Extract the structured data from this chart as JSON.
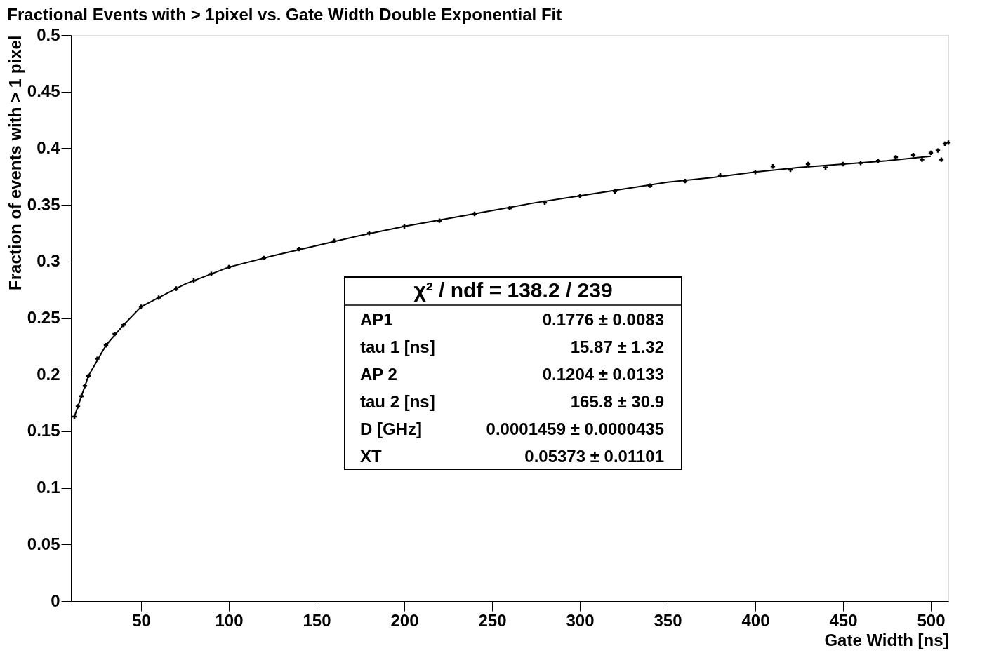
{
  "chart_data": {
    "type": "scatter",
    "title": "Fractional Events with > 1pixel vs. Gate Width Double Exponential Fit",
    "xlabel": "Gate Width [ns]",
    "ylabel": "Fraction of events with > 1 pixel",
    "xlim": [
      10,
      510
    ],
    "ylim": [
      0,
      0.5
    ],
    "xticks": [
      50,
      100,
      150,
      200,
      250,
      300,
      350,
      400,
      450,
      500
    ],
    "yticks": [
      0,
      0.05,
      0.1,
      0.15,
      0.2,
      0.25,
      0.3,
      0.35,
      0.4,
      0.45,
      0.5
    ],
    "grid": false,
    "series": [
      {
        "color": "#000000",
        "marker": "cross",
        "x": [
          12,
          14,
          16,
          18,
          20,
          25,
          30,
          35,
          40,
          50,
          60,
          70,
          80,
          90,
          100,
          120,
          140,
          160,
          180,
          200,
          220,
          240,
          260,
          280,
          300,
          320,
          340,
          360,
          380,
          400,
          410,
          420,
          430,
          440,
          450,
          460,
          470,
          480,
          490,
          495,
          500,
          504,
          506,
          508,
          510
        ],
        "values": [
          0.163,
          0.172,
          0.181,
          0.19,
          0.199,
          0.214,
          0.226,
          0.236,
          0.244,
          0.26,
          0.268,
          0.276,
          0.283,
          0.289,
          0.295,
          0.303,
          0.311,
          0.318,
          0.325,
          0.331,
          0.336,
          0.342,
          0.347,
          0.352,
          0.358,
          0.362,
          0.367,
          0.371,
          0.376,
          0.379,
          0.384,
          0.381,
          0.386,
          0.383,
          0.386,
          0.387,
          0.389,
          0.392,
          0.394,
          0.39,
          0.396,
          0.398,
          0.39,
          0.404,
          0.405
        ]
      },
      {
        "type": "line",
        "color": "#000000",
        "line_style": "solid",
        "x": [
          12,
          20,
          30,
          40,
          50,
          60,
          75,
          100,
          125,
          150,
          175,
          200,
          225,
          250,
          275,
          300,
          325,
          350,
          375,
          400,
          425,
          450,
          475,
          500
        ],
        "values": [
          0.163,
          0.199,
          0.226,
          0.244,
          0.26,
          0.268,
          0.28,
          0.295,
          0.305,
          0.314,
          0.323,
          0.331,
          0.338,
          0.345,
          0.352,
          0.358,
          0.364,
          0.37,
          0.374,
          0.379,
          0.383,
          0.386,
          0.389,
          0.393
        ]
      }
    ],
    "annotations": [
      "χ² / ndf = 138.2 / 239",
      "AP1",
      "0.1776 ± 0.0083",
      "tau 1 [ns]",
      "15.87 ± 1.32",
      "AP 2",
      "0.1204 ± 0.0133",
      "tau 2 [ns]",
      "165.8 ± 30.9",
      "D [GHz]",
      "0.0001459 ± 0.0000435",
      "XT",
      "0.05373 ± 0.01101"
    ]
  }
}
